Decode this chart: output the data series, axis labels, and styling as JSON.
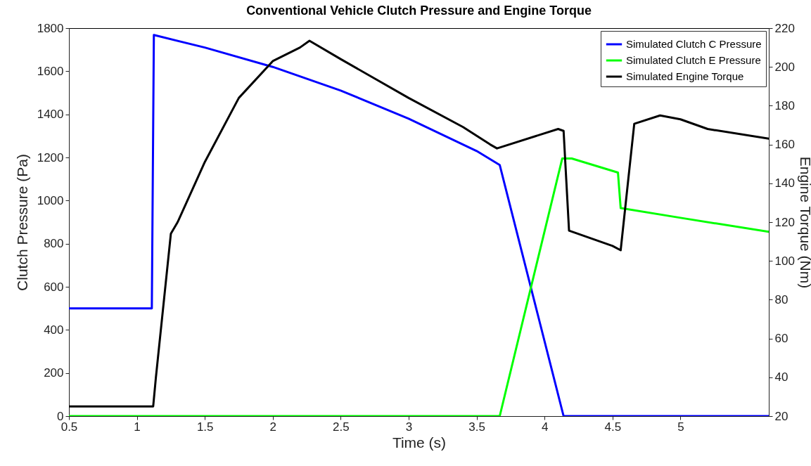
{
  "chart_data": {
    "type": "line",
    "title": "Conventional Vehicle Clutch Pressure and Engine Torque",
    "xlabel": "Time (s)",
    "ylabel": "Clutch Pressure (Pa)",
    "y2label": "Engine Torque (Nm)",
    "xlim": [
      0.5,
      5.65
    ],
    "xticks": [
      0.5,
      1,
      1.5,
      2,
      2.5,
      3,
      3.5,
      4,
      4.5,
      5
    ],
    "ylim": [
      0,
      1800
    ],
    "yticks": [
      0,
      200,
      400,
      600,
      800,
      1000,
      1200,
      1400,
      1600,
      1800
    ],
    "y2lim": [
      20,
      220
    ],
    "y2ticks": [
      20,
      40,
      60,
      80,
      100,
      120,
      140,
      160,
      180,
      200,
      220
    ],
    "legend": "top right",
    "grid": false,
    "marker": "none",
    "line_style": "solid",
    "series": [
      {
        "name": "Simulated Clutch C Pressure",
        "color": "#0000ff",
        "x": [
          0.5,
          1.11,
          1.125,
          1.5,
          2.0,
          2.5,
          3.0,
          3.5,
          3.67,
          4.14,
          5.65
        ],
        "values": [
          500,
          500,
          1768,
          1710,
          1620,
          1510,
          1380,
          1230,
          1165,
          0,
          0
        ]
      },
      {
        "name": "Simulated Clutch E Pressure",
        "color": "#00ff00",
        "x": [
          0.5,
          3.67,
          4.13,
          4.2,
          4.54,
          4.56,
          5.0,
          5.65
        ],
        "values": [
          0,
          0,
          1195,
          1195,
          1130,
          965,
          920,
          855
        ]
      },
      {
        "name": "Simulated Engine Torque",
        "color": "#000000",
        "axis": "y2",
        "x": [
          0.5,
          1.12,
          1.14,
          1.25,
          1.3,
          1.5,
          1.75,
          2.0,
          2.2,
          2.27,
          2.5,
          3.0,
          3.4,
          3.6,
          3.65,
          4.1,
          4.14,
          4.18,
          4.5,
          4.56,
          4.66,
          4.85,
          5.0,
          5.2,
          5.65
        ],
        "values": [
          25,
          25,
          40,
          114,
          120,
          151,
          184,
          203,
          210,
          213.5,
          204,
          184,
          169,
          160,
          158,
          168,
          167,
          115.6,
          107.7,
          105.5,
          170.7,
          175,
          173,
          168,
          163
        ]
      }
    ]
  }
}
